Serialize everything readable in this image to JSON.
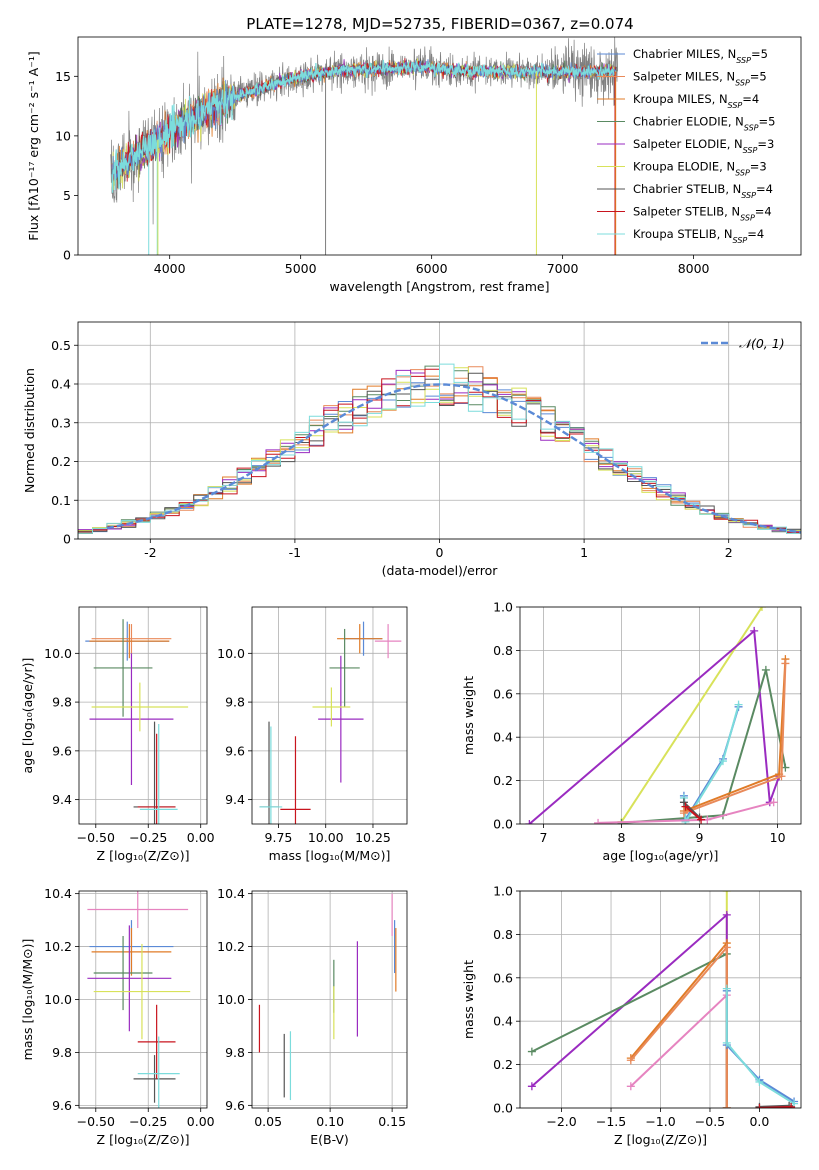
{
  "figure_title": "PLATE=1278, MJD=52735, FIBERID=0367, z=0.074",
  "colors": {
    "blue": "#5b8ad6",
    "salmon": "#e98a5a",
    "orange": "#e07b27",
    "green": "#5a8a62",
    "purple": "#9a2bc0",
    "yellow": "#d8e25a",
    "dark": "#555555",
    "red": "#c8141e",
    "cyan": "#7cdcdc",
    "pink": "#e684c0",
    "gray": "#7f7f7f",
    "dashed": "#5b8ad6"
  },
  "chart_data": [
    {
      "id": "spectrum",
      "type": "line",
      "xlabel": "wavelength [Angstrom, rest frame]",
      "ylabel": "Flux [fλ10⁻¹⁷ erg cm⁻² s⁻¹ A⁻¹]",
      "xlim": [
        3300,
        8820
      ],
      "ylim": [
        0,
        18.3
      ],
      "xticks": [
        4000,
        5000,
        6000,
        7000,
        8000
      ],
      "yticks": [
        0,
        5,
        10,
        15
      ],
      "grid": false,
      "legend_position": "right",
      "legend": [
        {
          "model": "Chabrier MILES",
          "n": "5",
          "color": "blue"
        },
        {
          "model": "Salpeter MILES",
          "n": "5",
          "color": "salmon"
        },
        {
          "model": "Kroupa MILES",
          "n": "4",
          "color": "orange"
        },
        {
          "model": "Chabrier ELODIE",
          "n": "5",
          "color": "green"
        },
        {
          "model": "Salpeter ELODIE",
          "n": "3",
          "color": "purple"
        },
        {
          "model": "Kroupa ELODIE",
          "n": "3",
          "color": "yellow"
        },
        {
          "model": "Chabrier STELIB",
          "n": "4",
          "color": "dark"
        },
        {
          "model": "Salpeter STELIB",
          "n": "4",
          "color": "red"
        },
        {
          "model": "Kroupa STELIB",
          "n": "4",
          "color": "cyan"
        }
      ],
      "n_label_sub": "SSP",
      "continuum": {
        "x": [
          3550,
          3650,
          3750,
          3850,
          3950,
          4050,
          4150,
          4300,
          4500,
          4700,
          4900,
          5100,
          5300,
          5600,
          5900,
          6200,
          6500,
          6800,
          7100,
          7400
        ],
        "y": [
          6.5,
          7.5,
          8.5,
          9.2,
          10.0,
          10.8,
          11.3,
          12.2,
          13.3,
          14.0,
          14.7,
          15.2,
          15.5,
          15.6,
          15.8,
          15.5,
          15.4,
          15.4,
          15.4,
          15.4
        ]
      },
      "dropouts": [
        {
          "x": 3840,
          "color": "cyan"
        },
        {
          "x": 3905,
          "color": "cyan"
        },
        {
          "x": 3910,
          "color": "yellow"
        },
        {
          "x": 5190,
          "color": "gray"
        },
        {
          "x": 6800,
          "color": "yellow"
        },
        {
          "x": 7400,
          "color": "red"
        },
        {
          "x": 7405,
          "color": "orange"
        }
      ]
    },
    {
      "id": "residuals",
      "type": "histogram",
      "xlabel": "(data-model)/error",
      "ylabel": "Normed distribution",
      "xlim": [
        -2.5,
        2.5
      ],
      "ylim": [
        0,
        0.56
      ],
      "xticks": [
        -2,
        -1,
        0,
        1,
        2
      ],
      "yticks": [
        0.0,
        0.1,
        0.2,
        0.3,
        0.4,
        0.5
      ],
      "grid": true,
      "legend_position": "top-right",
      "legend_label": "𝒩(0, 1)",
      "bin_width": 0.1,
      "series_colors": [
        "blue",
        "salmon",
        "orange",
        "green",
        "purple",
        "yellow",
        "dark",
        "red",
        "cyan"
      ]
    },
    {
      "id": "z_age",
      "type": "errorbar",
      "xlabel": "Z [log₁₀(Z/Z⊙)]",
      "ylabel": "age  [log₁₀(age/yr)]",
      "xlim": [
        -0.58,
        0.03
      ],
      "ylim": [
        9.3,
        10.19
      ],
      "xticks": [
        -0.5,
        -0.25,
        0.0
      ],
      "xticklabels": [
        "−0.50",
        "−0.25",
        "0.00"
      ],
      "yticks": [
        9.4,
        9.6,
        9.8,
        10.0
      ],
      "yticklabels": [
        "9.4",
        "9.6",
        "9.8",
        "10.0"
      ],
      "grid": true,
      "points": [
        {
          "x": -0.35,
          "y": 10.05,
          "xerr": 0.2,
          "yerr": 0.08,
          "color": "blue"
        },
        {
          "x": -0.33,
          "y": 10.06,
          "xerr": 0.19,
          "yerr": 0.06,
          "color": "salmon"
        },
        {
          "x": -0.34,
          "y": 10.05,
          "xerr": 0.19,
          "yerr": 0.07,
          "color": "orange"
        },
        {
          "x": -0.37,
          "y": 9.94,
          "xerr": 0.14,
          "yerr": 0.2,
          "color": "green"
        },
        {
          "x": -0.33,
          "y": 9.73,
          "xerr": 0.2,
          "yerr": 0.27,
          "color": "purple"
        },
        {
          "x": -0.29,
          "y": 9.78,
          "xerr": 0.23,
          "yerr": 0.1,
          "color": "yellow"
        },
        {
          "x": -0.22,
          "y": 9.37,
          "xerr": 0.1,
          "yerr": 0.35,
          "color": "dark"
        },
        {
          "x": -0.21,
          "y": 9.37,
          "xerr": 0.09,
          "yerr": 0.3,
          "color": "red"
        },
        {
          "x": -0.2,
          "y": 9.36,
          "xerr": 0.09,
          "yerr": 0.35,
          "color": "cyan"
        }
      ]
    },
    {
      "id": "mass_age",
      "type": "errorbar",
      "xlabel": "mass [log₁₀(M/M⊙)]",
      "ylabel": "",
      "xlim": [
        9.61,
        10.43
      ],
      "ylim": [
        9.3,
        10.19
      ],
      "xticks": [
        9.75,
        10.0,
        10.25
      ],
      "xticklabels": [
        "9.75",
        "10.00",
        "10.25"
      ],
      "yticks": [
        9.4,
        9.6,
        9.8,
        10.0
      ],
      "yticklabels": [
        "9.4",
        "9.6",
        "9.8",
        "10.0"
      ],
      "grid": true,
      "points": [
        {
          "x": 10.2,
          "y": 10.06,
          "xerr": 0.1,
          "yerr": 0.07,
          "color": "blue"
        },
        {
          "x": 10.18,
          "y": 10.06,
          "xerr": 0.12,
          "yerr": 0.06,
          "color": "orange"
        },
        {
          "x": 10.33,
          "y": 10.05,
          "xerr": 0.07,
          "yerr": 0.07,
          "color": "pink"
        },
        {
          "x": 10.1,
          "y": 9.94,
          "xerr": 0.08,
          "yerr": 0.16,
          "color": "green"
        },
        {
          "x": 10.08,
          "y": 9.73,
          "xerr": 0.12,
          "yerr": 0.26,
          "color": "purple"
        },
        {
          "x": 10.03,
          "y": 9.78,
          "xerr": 0.1,
          "yerr": 0.08,
          "color": "yellow"
        },
        {
          "x": 9.7,
          "y": 9.37,
          "xerr": 0.05,
          "yerr": 0.35,
          "color": "dark"
        },
        {
          "x": 9.84,
          "y": 9.36,
          "xerr": 0.08,
          "yerr": 0.3,
          "color": "red"
        },
        {
          "x": 9.71,
          "y": 9.37,
          "xerr": 0.06,
          "yerr": 0.33,
          "color": "cyan"
        }
      ]
    },
    {
      "id": "age_weight",
      "type": "line",
      "xlabel": "age  [log₁₀(age/yr)]",
      "ylabel": "mass weight",
      "xlim": [
        6.7,
        10.3
      ],
      "ylim": [
        0,
        1
      ],
      "xticks": [
        7,
        8,
        9,
        10
      ],
      "xticklabels": [
        "7",
        "8",
        "9",
        "10"
      ],
      "yticks": [
        0,
        0.2,
        0.4,
        0.6,
        0.8,
        1.0
      ],
      "yticklabels": [
        "0.0",
        "0.2",
        "0.4",
        "0.6",
        "0.8",
        "1.0"
      ],
      "grid": true,
      "series": [
        {
          "color": "yellow",
          "x": [
            8.0,
            9.8
          ],
          "y": [
            0.01,
            1.0
          ]
        },
        {
          "color": "purple",
          "x": [
            6.82,
            9.7,
            9.9,
            10.02
          ],
          "y": [
            0.0,
            0.89,
            0.1,
            0.22
          ]
        },
        {
          "color": "green",
          "x": [
            8.0,
            9.3,
            9.85,
            10.1
          ],
          "y": [
            0.005,
            0.04,
            0.71,
            0.26
          ]
        },
        {
          "color": "blue",
          "x": [
            8.8,
            8.82,
            9.3,
            9.5
          ],
          "y": [
            0.13,
            0.02,
            0.3,
            0.54
          ]
        },
        {
          "color": "cyan",
          "x": [
            8.8,
            8.82,
            9.3,
            9.5
          ],
          "y": [
            0.12,
            0.01,
            0.29,
            0.55
          ]
        },
        {
          "color": "orange",
          "x": [
            8.8,
            10.02,
            10.1
          ],
          "y": [
            0.06,
            0.23,
            0.76
          ]
        },
        {
          "color": "salmon",
          "x": [
            8.8,
            10.05,
            10.1
          ],
          "y": [
            0.05,
            0.22,
            0.74
          ]
        },
        {
          "color": "pink",
          "x": [
            7.7,
            9.1,
            9.95
          ],
          "y": [
            0.005,
            0.02,
            0.1
          ]
        },
        {
          "color": "dark",
          "x": [
            8.8,
            9.0
          ],
          "y": [
            0.1,
            0.03
          ]
        },
        {
          "color": "red",
          "x": [
            8.82,
            9.02
          ],
          "y": [
            0.08,
            0.02
          ]
        }
      ]
    },
    {
      "id": "z_mass",
      "type": "errorbar",
      "xlabel": "Z [log₁₀(Z/Z⊙)]",
      "ylabel": "mass [log₁₀(M/M⊙)]",
      "xlim": [
        -0.58,
        0.03
      ],
      "ylim": [
        9.59,
        10.41
      ],
      "xticks": [
        -0.5,
        -0.25,
        0.0
      ],
      "xticklabels": [
        "−0.50",
        "−0.25",
        "0.00"
      ],
      "yticks": [
        9.6,
        9.8,
        10.0,
        10.2,
        10.4
      ],
      "yticklabels": [
        "9.6",
        "9.8",
        "10.0",
        "10.2",
        "10.4"
      ],
      "grid": true,
      "points": [
        {
          "x": -0.33,
          "y": 10.2,
          "xerr": 0.2,
          "yerr": 0.1,
          "color": "blue"
        },
        {
          "x": -0.33,
          "y": 10.18,
          "xerr": 0.19,
          "yerr": 0.09,
          "color": "orange"
        },
        {
          "x": -0.3,
          "y": 10.34,
          "xerr": 0.24,
          "yerr": 0.07,
          "color": "pink"
        },
        {
          "x": -0.37,
          "y": 10.1,
          "xerr": 0.14,
          "yerr": 0.14,
          "color": "green"
        },
        {
          "x": -0.34,
          "y": 10.08,
          "xerr": 0.2,
          "yerr": 0.2,
          "color": "purple"
        },
        {
          "x": -0.28,
          "y": 10.03,
          "xerr": 0.23,
          "yerr": 0.18,
          "color": "yellow"
        },
        {
          "x": -0.22,
          "y": 9.7,
          "xerr": 0.1,
          "yerr": 0.09,
          "color": "dark"
        },
        {
          "x": -0.21,
          "y": 9.84,
          "xerr": 0.09,
          "yerr": 0.14,
          "color": "red"
        },
        {
          "x": -0.2,
          "y": 9.72,
          "xerr": 0.1,
          "yerr": 0.14,
          "color": "cyan"
        }
      ]
    },
    {
      "id": "ebv_mass",
      "type": "errorbar",
      "xlabel": "E(B-V)",
      "ylabel": "",
      "xlim": [
        0.037,
        0.162
      ],
      "ylim": [
        9.59,
        10.41
      ],
      "xticks": [
        0.05,
        0.1,
        0.15
      ],
      "xticklabels": [
        "0.05",
        "0.10",
        "0.15"
      ],
      "yticks": [
        9.6,
        9.8,
        10.0,
        10.2,
        10.4
      ],
      "yticklabels": [
        "9.6",
        "9.8",
        "10.0",
        "10.2",
        "10.4"
      ],
      "grid": true,
      "points": [
        {
          "x": 0.043,
          "y": 9.89,
          "xerr": 0,
          "yerr": 0.09,
          "color": "red"
        },
        {
          "x": 0.063,
          "y": 9.75,
          "xerr": 0,
          "yerr": 0.12,
          "color": "dark"
        },
        {
          "x": 0.068,
          "y": 9.75,
          "xerr": 0,
          "yerr": 0.13,
          "color": "cyan"
        },
        {
          "x": 0.103,
          "y": 10.05,
          "xerr": 0,
          "yerr": 0.1,
          "color": "green"
        },
        {
          "x": 0.103,
          "y": 9.95,
          "xerr": 0,
          "yerr": 0.1,
          "color": "yellow"
        },
        {
          "x": 0.122,
          "y": 10.04,
          "xerr": 0,
          "yerr": 0.18,
          "color": "purple"
        },
        {
          "x": 0.15,
          "y": 10.32,
          "xerr": 0,
          "yerr": 0.08,
          "color": "pink"
        },
        {
          "x": 0.152,
          "y": 10.2,
          "xerr": 0,
          "yerr": 0.1,
          "color": "blue"
        },
        {
          "x": 0.153,
          "y": 10.15,
          "xerr": 0,
          "yerr": 0.12,
          "color": "orange"
        }
      ]
    },
    {
      "id": "z_weight",
      "type": "line",
      "xlabel": "Z [log₁₀(Z/Z⊙)]",
      "ylabel": "mass weight",
      "xlim": [
        -2.42,
        0.42
      ],
      "ylim": [
        0,
        1
      ],
      "xticks": [
        -2.0,
        -1.5,
        -1.0,
        -0.5,
        0.0
      ],
      "xticklabels": [
        "−2.0",
        "−1.5",
        "−1.0",
        "−0.5",
        "0.0"
      ],
      "yticks": [
        0,
        0.2,
        0.4,
        0.6,
        0.8,
        1.0
      ],
      "yticklabels": [
        "0.0",
        "0.2",
        "0.4",
        "0.6",
        "0.8",
        "1.0"
      ],
      "grid": true,
      "series": [
        {
          "color": "yellow",
          "x": [
            -0.33,
            -0.33
          ],
          "y": [
            0.0,
            1.0
          ]
        },
        {
          "color": "purple",
          "x": [
            -2.3,
            -0.33,
            -0.33
          ],
          "y": [
            0.1,
            0.89,
            0.0
          ]
        },
        {
          "color": "green",
          "x": [
            -2.3,
            -0.33,
            -0.33
          ],
          "y": [
            0.26,
            0.71,
            0.0
          ]
        },
        {
          "color": "orange",
          "x": [
            -1.3,
            -0.33,
            -0.33
          ],
          "y": [
            0.23,
            0.76,
            0.0
          ]
        },
        {
          "color": "salmon",
          "x": [
            -1.3,
            -0.33,
            -0.33
          ],
          "y": [
            0.22,
            0.74,
            0.0
          ]
        },
        {
          "color": "pink",
          "x": [
            -1.3,
            -0.33
          ],
          "y": [
            0.1,
            0.52
          ]
        },
        {
          "color": "blue",
          "x": [
            -0.33,
            -0.33,
            0.0,
            0.35
          ],
          "y": [
            0.54,
            0.29,
            0.13,
            0.03
          ]
        },
        {
          "color": "cyan",
          "x": [
            -0.33,
            -0.33,
            0.0,
            0.35
          ],
          "y": [
            0.55,
            0.3,
            0.12,
            0.02
          ]
        },
        {
          "color": "dark",
          "x": [
            0.0,
            0.3
          ],
          "y": [
            0.005,
            0.01
          ]
        },
        {
          "color": "red",
          "x": [
            0.0,
            0.32
          ],
          "y": [
            0.0,
            0.005
          ]
        }
      ]
    }
  ]
}
